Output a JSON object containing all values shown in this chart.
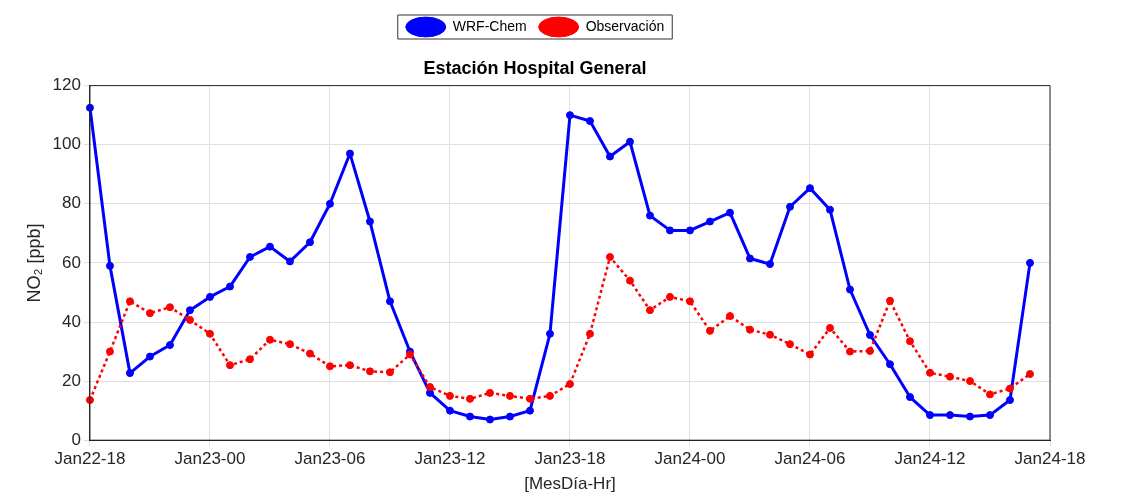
{
  "chart_data": {
    "type": "line",
    "title": "Estación Hospital General",
    "xlabel": "[MesDía-Hr]",
    "ylabel": "NO₂ [ppb]",
    "categories": [
      "Jan22-18",
      null,
      null,
      null,
      null,
      null,
      "Jan23-00",
      null,
      null,
      null,
      null,
      null,
      "Jan23-06",
      null,
      null,
      null,
      null,
      null,
      "Jan23-12",
      null,
      null,
      null,
      null,
      null,
      "Jan23-18",
      null,
      null,
      null,
      null,
      null,
      "Jan24-00",
      null,
      null,
      null,
      null,
      null,
      "Jan24-06",
      null,
      null,
      null,
      null,
      null,
      "Jan24-12",
      null,
      null,
      null,
      null,
      null,
      "Jan24-18"
    ],
    "series": [
      {
        "name": "WRF-Chem",
        "color": "#0000ff",
        "line_style": "solid",
        "values": [
          112.5,
          59,
          22.7,
          28.3,
          32.2,
          44,
          48.5,
          52,
          62,
          65.5,
          60.5,
          67,
          80,
          97,
          74,
          47,
          30,
          16,
          10,
          8,
          7,
          8,
          10,
          36,
          110,
          108,
          96,
          101,
          76,
          71,
          71,
          74,
          77,
          61.5,
          59.6,
          79,
          85.3,
          78,
          51,
          35.6,
          25.7,
          14.6,
          8.5,
          8.5,
          8,
          8.5,
          13.6,
          60,
          null
        ]
      },
      {
        "name": "Observación",
        "color": "#ff0000",
        "line_style": "dotted",
        "values": [
          13.6,
          30,
          47,
          43,
          45,
          40.7,
          36,
          25.4,
          27.4,
          34,
          32.5,
          29.3,
          25,
          25.4,
          23.3,
          23,
          29,
          18,
          15,
          14,
          16,
          15,
          14,
          15,
          19,
          36,
          62,
          54,
          44,
          48.5,
          47,
          37,
          42,
          37.4,
          35.7,
          32.5,
          29,
          38,
          30,
          30.2,
          47.2,
          33.5,
          22.8,
          21.5,
          20,
          15.5,
          17.5,
          22.4,
          null
        ]
      }
    ],
    "ylim": [
      0,
      120
    ],
    "yticks": [
      0,
      20,
      40,
      60,
      80,
      100,
      120
    ],
    "grid": true,
    "legend": "top",
    "marker": "circle"
  }
}
